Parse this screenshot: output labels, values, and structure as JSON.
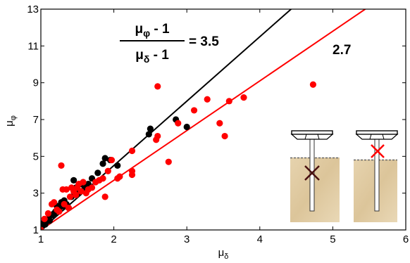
{
  "chart_data": {
    "type": "scatter",
    "xlabel": "μδ",
    "ylabel": "μφ",
    "xlim": [
      1,
      6
    ],
    "ylim": [
      1,
      13
    ],
    "xticks": [
      "1",
      "2",
      "3",
      "4",
      "5",
      "6"
    ],
    "yticks": [
      "1",
      "3",
      "5",
      "7",
      "9",
      "11",
      "13"
    ],
    "grid": false,
    "annotations": {
      "fraction_numerator": "μφ - 1",
      "fraction_denominator": "μδ - 1",
      "black_slope_label": "= 3.5",
      "red_slope_label": "2.7"
    },
    "series": [
      {
        "color": "#000000",
        "fit_slope": 3.5,
        "x": [
          1.02,
          1.04,
          1.06,
          1.08,
          1.1,
          1.12,
          1.15,
          1.18,
          1.2,
          1.22,
          1.25,
          1.28,
          1.3,
          1.32,
          1.35,
          1.38,
          1.42,
          1.45,
          1.48,
          1.5,
          1.55,
          1.6,
          1.65,
          1.7,
          1.78,
          1.85,
          1.88,
          1.95,
          2.05,
          2.48,
          2.5,
          2.85,
          3.0
        ],
        "y": [
          1.2,
          1.4,
          1.3,
          1.5,
          1.6,
          1.5,
          1.8,
          1.9,
          2.0,
          2.3,
          2.1,
          2.5,
          2.3,
          2.6,
          2.4,
          2.2,
          2.8,
          3.7,
          3.3,
          3.0,
          3.5,
          3.3,
          3.5,
          3.8,
          4.1,
          4.6,
          4.9,
          4.8,
          4.5,
          6.2,
          6.5,
          7.0,
          6.6
        ]
      },
      {
        "color": "#ff0000",
        "fit_slope": 2.7,
        "x": [
          1.0,
          1.05,
          1.1,
          1.15,
          1.18,
          1.22,
          1.25,
          1.28,
          1.3,
          1.32,
          1.35,
          1.38,
          1.4,
          1.42,
          1.45,
          1.48,
          1.5,
          1.52,
          1.55,
          1.58,
          1.62,
          1.65,
          1.7,
          1.75,
          1.8,
          1.85,
          1.88,
          1.92,
          1.97,
          2.05,
          2.08,
          2.25,
          2.25,
          2.25,
          2.58,
          2.6,
          2.6,
          2.75,
          2.88,
          3.1,
          3.28,
          3.45,
          3.52,
          3.58,
          3.78,
          4.73
        ],
        "y": [
          1.0,
          1.6,
          1.9,
          2.4,
          2.5,
          2.1,
          2.0,
          4.5,
          3.2,
          2.4,
          3.2,
          2.2,
          2.8,
          3.3,
          3.1,
          2.9,
          3.3,
          3.5,
          3.1,
          3.6,
          3.0,
          3.2,
          3.3,
          3.6,
          3.7,
          3.8,
          2.8,
          4.2,
          4.8,
          3.8,
          3.9,
          4.0,
          4.2,
          5.3,
          5.9,
          6.1,
          8.8,
          4.7,
          6.8,
          7.5,
          8.1,
          6.8,
          6.1,
          8.0,
          8.2,
          8.9
        ]
      }
    ]
  }
}
